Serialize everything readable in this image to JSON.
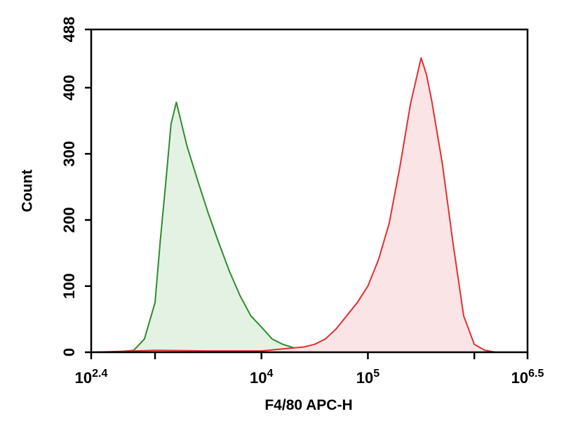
{
  "chart_data": {
    "type": "area",
    "xlabel": "F4/80 APC-H",
    "ylabel": "Count",
    "x_scale": "log",
    "xlim": [
      2.4,
      6.5
    ],
    "ylim": [
      0,
      488
    ],
    "grid": false,
    "legend": "none",
    "x_ticks": [
      {
        "value": 2.4,
        "base": "10",
        "exp": "2.4"
      },
      {
        "value": 3,
        "base": "",
        "exp": ""
      },
      {
        "value": 4,
        "base": "10",
        "exp": "4"
      },
      {
        "value": 5,
        "base": "10",
        "exp": "5"
      },
      {
        "value": 6,
        "base": "",
        "exp": ""
      },
      {
        "value": 6.5,
        "base": "10",
        "exp": "6.5"
      }
    ],
    "y_ticks": [
      {
        "value": 0,
        "label": "0"
      },
      {
        "value": 100,
        "label": "100"
      },
      {
        "value": 200,
        "label": "200"
      },
      {
        "value": 300,
        "label": "300"
      },
      {
        "value": 400,
        "label": "400"
      },
      {
        "value": 488,
        "label": "488"
      }
    ],
    "series": [
      {
        "color": "#2e8b2e",
        "fill": "#e4f2e4",
        "x": [
          2.4,
          2.6,
          2.8,
          2.9,
          3.0,
          3.05,
          3.1,
          3.15,
          3.2,
          3.3,
          3.4,
          3.5,
          3.6,
          3.7,
          3.8,
          3.9,
          4.0,
          4.1,
          4.2,
          4.3,
          4.4,
          4.5,
          4.6,
          4.7,
          4.8,
          4.9,
          5.0
        ],
        "y": [
          0,
          0,
          3,
          20,
          75,
          170,
          255,
          345,
          378,
          312,
          260,
          210,
          165,
          122,
          85,
          55,
          38,
          20,
          12,
          7,
          4,
          3,
          2,
          1,
          1,
          0,
          0
        ]
      },
      {
        "color": "#e03030",
        "fill": "#fbe4e6",
        "x": [
          2.4,
          3.0,
          3.5,
          4.0,
          4.2,
          4.4,
          4.5,
          4.6,
          4.7,
          4.8,
          4.9,
          5.0,
          5.1,
          5.2,
          5.3,
          5.4,
          5.45,
          5.5,
          5.55,
          5.6,
          5.7,
          5.8,
          5.9,
          6.0,
          6.1,
          6.2,
          6.5
        ],
        "y": [
          0,
          3,
          2,
          2,
          5,
          8,
          12,
          20,
          35,
          55,
          75,
          100,
          140,
          195,
          280,
          375,
          410,
          445,
          420,
          380,
          285,
          165,
          55,
          12,
          3,
          0,
          0
        ]
      }
    ]
  }
}
